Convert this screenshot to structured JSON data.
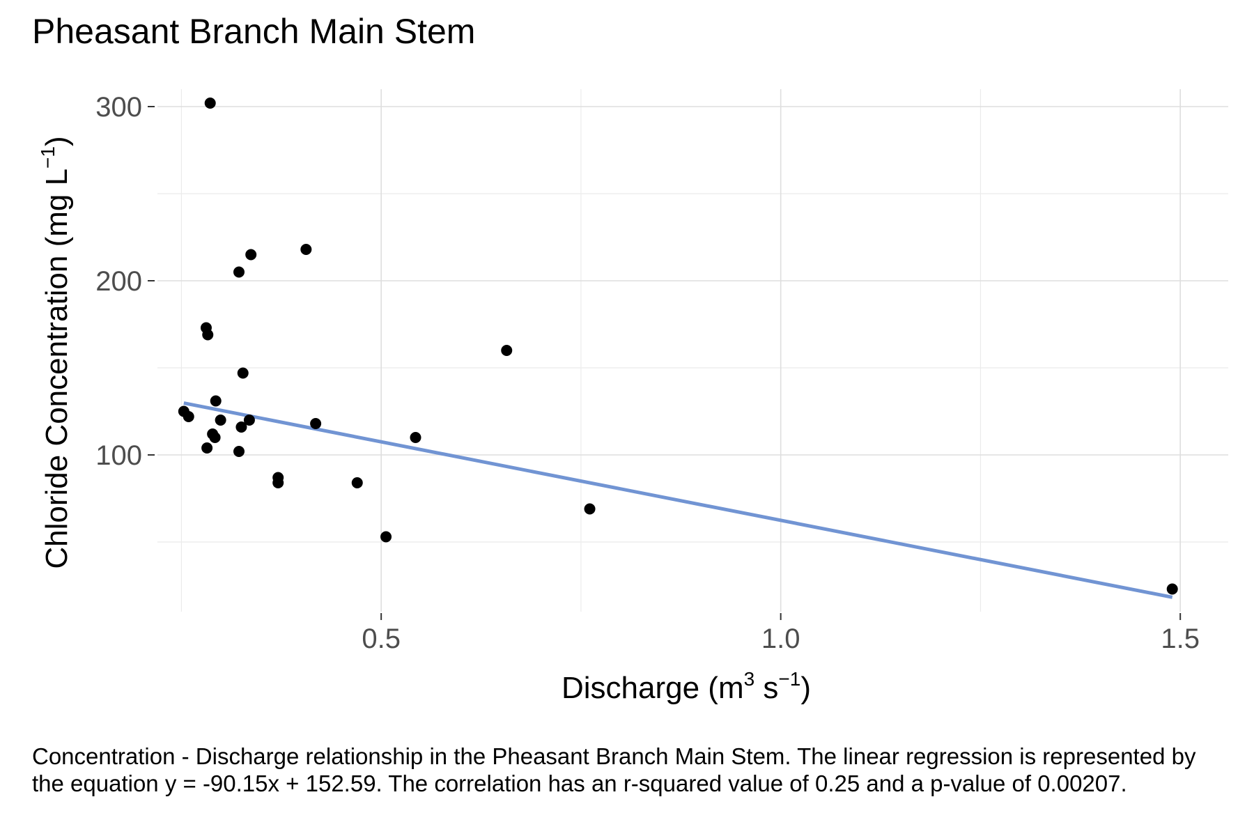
{
  "chart_data": {
    "type": "scatter",
    "title": "Pheasant Branch Main Stem",
    "xlabel": {
      "prefix": "Discharge (m",
      "sup1": "3",
      "middle": " s",
      "sup2": "−1",
      "suffix": ")"
    },
    "ylabel": {
      "prefix": "Chloride Concentration (mg L",
      "sup": "−1",
      "suffix": ")"
    },
    "xlim": [
      0.22,
      1.56
    ],
    "ylim": [
      10,
      310
    ],
    "x_ticks": [
      {
        "value": 0.5,
        "label": "0.5"
      },
      {
        "value": 1.0,
        "label": "1.0"
      },
      {
        "value": 1.5,
        "label": "1.5"
      }
    ],
    "y_ticks": [
      {
        "value": 100,
        "label": "100"
      },
      {
        "value": 200,
        "label": "200"
      },
      {
        "value": 300,
        "label": "300"
      }
    ],
    "x_minor_grid": [
      0.25,
      0.75,
      1.25
    ],
    "y_minor_grid": [
      50,
      150,
      250
    ],
    "grid": true,
    "point_color": "#000000",
    "line_color": "#7194d3",
    "points": [
      {
        "x": 0.286,
        "y": 302
      },
      {
        "x": 0.406,
        "y": 218
      },
      {
        "x": 0.337,
        "y": 215
      },
      {
        "x": 0.322,
        "y": 205
      },
      {
        "x": 0.281,
        "y": 173
      },
      {
        "x": 0.283,
        "y": 169
      },
      {
        "x": 0.657,
        "y": 160
      },
      {
        "x": 0.327,
        "y": 147
      },
      {
        "x": 0.293,
        "y": 131
      },
      {
        "x": 0.253,
        "y": 125
      },
      {
        "x": 0.259,
        "y": 122
      },
      {
        "x": 0.299,
        "y": 120
      },
      {
        "x": 0.335,
        "y": 120
      },
      {
        "x": 0.418,
        "y": 118
      },
      {
        "x": 0.325,
        "y": 116
      },
      {
        "x": 0.289,
        "y": 112
      },
      {
        "x": 0.292,
        "y": 110
      },
      {
        "x": 0.543,
        "y": 110
      },
      {
        "x": 0.282,
        "y": 104
      },
      {
        "x": 0.322,
        "y": 102
      },
      {
        "x": 0.371,
        "y": 87
      },
      {
        "x": 0.371,
        "y": 84
      },
      {
        "x": 0.47,
        "y": 84
      },
      {
        "x": 0.761,
        "y": 69
      },
      {
        "x": 0.506,
        "y": 53
      },
      {
        "x": 1.49,
        "y": 23
      }
    ],
    "regression": {
      "slope": -90.15,
      "intercept": 152.59,
      "x_start": 0.253,
      "x_end": 1.49
    }
  },
  "caption": "Concentration - Discharge relationship in the Pheasant Branch Main Stem. The linear regression is represented by the equation y = -90.15x + 152.59. The correlation has an r-squared value of 0.25 and a p-value of 0.00207."
}
